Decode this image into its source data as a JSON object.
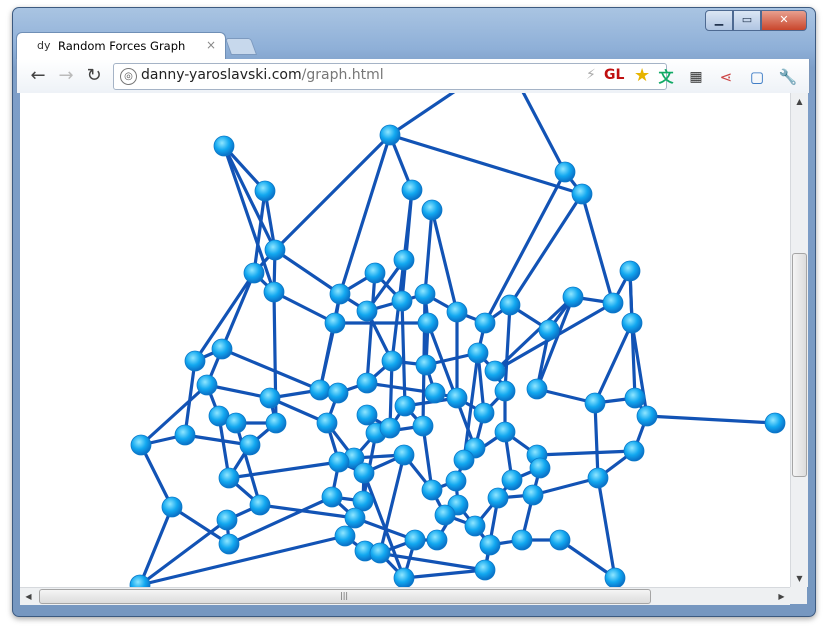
{
  "window": {
    "controls": {
      "minimize": "▁",
      "maximize": "▭",
      "close": "✕"
    }
  },
  "tab": {
    "favicon": "dy",
    "title": "Random Forces Graph",
    "close": "×"
  },
  "toolbar": {
    "back_icon": "←",
    "forward_icon": "→",
    "reload_icon": "↻"
  },
  "address": {
    "host": "danny-yaroslavski.com",
    "path": "/graph.html",
    "badge": "GL"
  },
  "extensions": [
    "translate-icon",
    "qr-code-icon",
    "share-icon",
    "fullscreen-icon",
    "wrench-icon"
  ],
  "colors": {
    "edge": "#1253b5",
    "node": "#12a8f0"
  }
}
